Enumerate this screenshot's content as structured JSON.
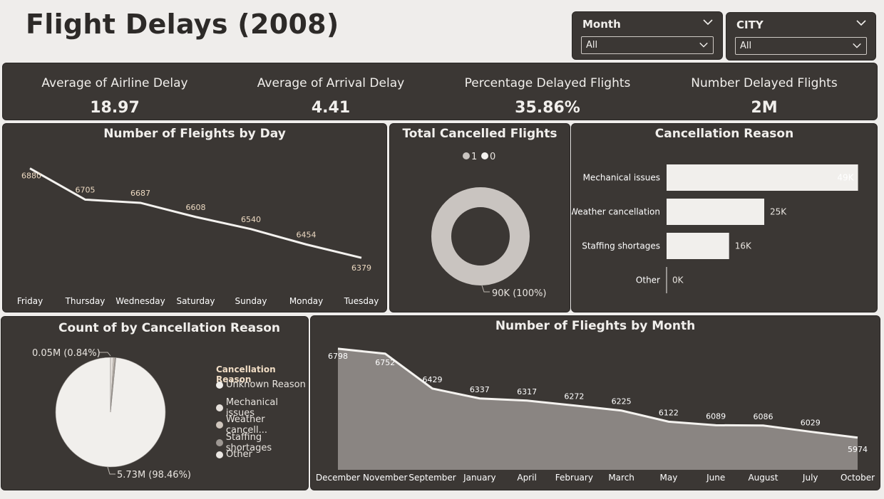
{
  "title": "Flight Delays (2008)",
  "slicers": [
    {
      "label": "Month",
      "value": "All"
    },
    {
      "label": "CITY",
      "value": "All"
    }
  ],
  "kpis": [
    {
      "label": "Average of Airline Delay",
      "value": "18.97"
    },
    {
      "label": "Average of Arrival Delay",
      "value": "4.41"
    },
    {
      "label": "Percentage Delayed Flights",
      "value": "35.86%"
    },
    {
      "label": "Number Delayed Flights",
      "value": "2M"
    }
  ],
  "colors": {
    "background": "#efedeb",
    "panel": "#3b3734",
    "line": "#f4f2ef",
    "area": "#8a8582",
    "bar": "#f1efec",
    "donut": "#c9c4c0"
  },
  "chart_data": [
    {
      "type": "line",
      "title": "Number of Fleights by Day",
      "categories": [
        "Friday",
        "Thursday",
        "Wednesday",
        "Saturday",
        "Sunday",
        "Monday",
        "Tuesday"
      ],
      "values": [
        6880,
        6705,
        6687,
        6608,
        6540,
        6454,
        6379
      ],
      "ylim": [
        6300,
        6950
      ]
    },
    {
      "type": "pie",
      "title": "Total Cancelled Flights",
      "legend": [
        "1",
        "0"
      ],
      "slices": [
        {
          "name": "0",
          "value": 90,
          "label": "90K (100%)"
        }
      ],
      "legend_colors": [
        "#c9c4c0",
        "#f4f2ef"
      ]
    },
    {
      "type": "bar",
      "title": "Cancellation Reason",
      "categories": [
        "Mechanical issues",
        "Weather cancellation",
        "Staffing shortages",
        "Other"
      ],
      "values": [
        49,
        25,
        16,
        0
      ],
      "labels": [
        "49K",
        "25K",
        "16K",
        "0K"
      ],
      "xlim": [
        0,
        52
      ]
    },
    {
      "type": "pie",
      "title": "Count of by Cancellation Reason",
      "legend_title": "Cancellation Reason",
      "legend": [
        "Unknown Reason",
        "Mechanical issues",
        "Weather cancell...",
        "Staffing shortages",
        "Other"
      ],
      "legend_colors": [
        "#f1efec",
        "#e6e1dc",
        "#cfc6bd",
        "#9e9893",
        "#ebe7e3"
      ],
      "slices": [
        {
          "name": "Unknown Reason",
          "value": 5.73,
          "label": "5.73M (98.46%)"
        },
        {
          "name": "Mechanical issues",
          "value": 0.05,
          "label": "0.05M (0.84%)"
        },
        {
          "name": "Weather cancell...",
          "value": 0.025,
          "label": ""
        },
        {
          "name": "Staffing shortages",
          "value": 0.016,
          "label": ""
        }
      ]
    },
    {
      "type": "area",
      "title": "Number of Flieghts by Month",
      "categories": [
        "December",
        "November",
        "September",
        "January",
        "April",
        "February",
        "March",
        "May",
        "June",
        "August",
        "July",
        "October"
      ],
      "values": [
        6798,
        6752,
        6429,
        6337,
        6317,
        6272,
        6225,
        6122,
        6089,
        6086,
        6029,
        5974
      ],
      "ylim": [
        5900,
        6850
      ]
    }
  ]
}
